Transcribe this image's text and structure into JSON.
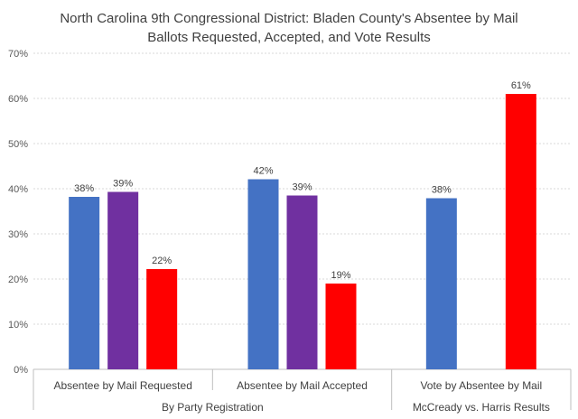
{
  "chart_data": {
    "type": "bar",
    "title_line1": "North Carolina 9th Congressional District: Bladen County's Absentee by Mail",
    "title_line2": "Ballots Requested, Accepted, and Vote Results",
    "ylim": [
      0,
      70
    ],
    "yticks": [
      "0%",
      "10%",
      "20%",
      "30%",
      "40%",
      "50%",
      "60%",
      "70%"
    ],
    "grid": true,
    "categories": [
      "Absentee by Mail Requested",
      "Absentee by Mail Accepted",
      "Vote by Absentee by Mail"
    ],
    "groups": [
      {
        "label": "By Party Registration",
        "span": [
          0,
          1
        ]
      },
      {
        "label": "McCready vs. Harris Results",
        "span": [
          2,
          2
        ]
      }
    ],
    "series": [
      {
        "color": "#4472C4",
        "values": [
          38,
          42,
          38
        ],
        "labels": [
          "38%",
          "42%",
          "38%"
        ]
      },
      {
        "color": "#7030A0",
        "values": [
          39,
          39,
          null
        ],
        "labels": [
          "39%",
          "39%",
          ""
        ]
      },
      {
        "color": "#FF0000",
        "values": [
          22,
          19,
          61
        ],
        "labels": [
          "22%",
          "19%",
          "61%"
        ]
      }
    ],
    "bar_heights": [
      [
        38.2,
        42.1,
        37.9
      ],
      [
        39.3,
        38.5,
        null
      ],
      [
        22.2,
        19.0,
        61.0
      ]
    ]
  }
}
